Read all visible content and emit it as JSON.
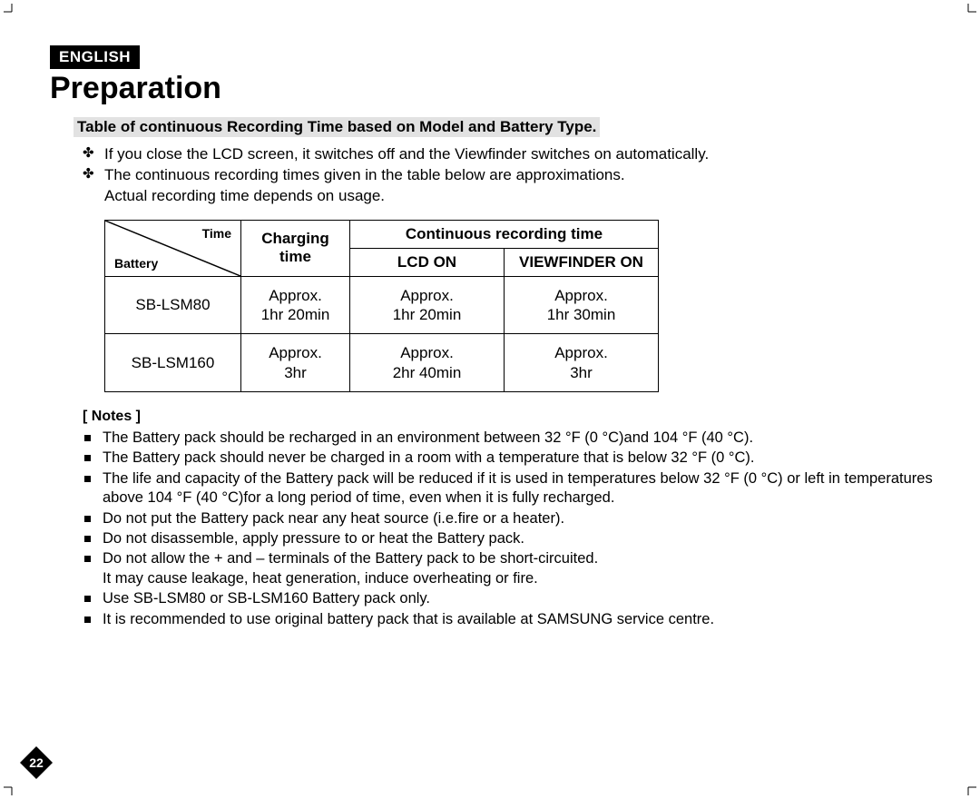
{
  "language_badge": "ENGLISH",
  "section_title": "Preparation",
  "table_caption": "Table of continuous Recording Time based on Model and Battery Type.",
  "intro_bullets": [
    "If you close the LCD screen, it switches off and the Viewfinder switches on automatically.",
    "The continuous recording times given in the table below are approximations.\nActual recording time depends on usage."
  ],
  "table": {
    "diag_top": "Time",
    "diag_bottom": "Battery",
    "charging_header": "Charging time",
    "continuous_header": "Continuous recording time",
    "lcd_header": "LCD ON",
    "viewfinder_header": "VIEWFINDER ON",
    "small_font_size_pt": 14,
    "header_font_size_pt": 17,
    "rows": [
      {
        "battery": "SB-LSM80",
        "charging_l1": "Approx.",
        "charging_l2": "1hr 20min",
        "lcd_l1": "Approx.",
        "lcd_l2": "1hr 20min",
        "vf_l1": "Approx.",
        "vf_l2": "1hr 30min"
      },
      {
        "battery": "SB-LSM160",
        "charging_l1": "Approx.",
        "charging_l2": "3hr",
        "lcd_l1": "Approx.",
        "lcd_l2": "2hr 40min",
        "vf_l1": "Approx.",
        "vf_l2": "3hr"
      }
    ]
  },
  "notes_heading": "[ Notes ]",
  "notes": [
    "The Battery pack should be recharged in an environment between 32 °F (0 °C)and 104 °F (40 °C).",
    "The Battery pack should never be charged in a room with a temperature that is below 32 °F (0 °C).",
    "The life and capacity of the Battery pack will be reduced if it is used in temperatures below 32 °F (0 °C) or left in temperatures above 104 °F (40 °C)for a long period of time, even when it is fully recharged.",
    "Do not put the Battery pack near any heat source (i.e.fire or a heater).",
    "Do not disassemble, apply pressure to or heat the Battery pack.",
    "Do not allow the + and – terminals of the Battery pack to be short-circuited.\nIt may cause leakage, heat generation, induce overheating or fire.",
    "Use SB-LSM80 or SB-LSM160 Battery pack only.",
    "It is recommended to use original battery pack that is available at SAMSUNG service centre."
  ],
  "page_number": "22",
  "colors": {
    "badge_bg": "#000000",
    "badge_fg": "#ffffff",
    "caption_bg": "#e2e2e2",
    "text": "#000000",
    "page_bg": "#ffffff"
  }
}
